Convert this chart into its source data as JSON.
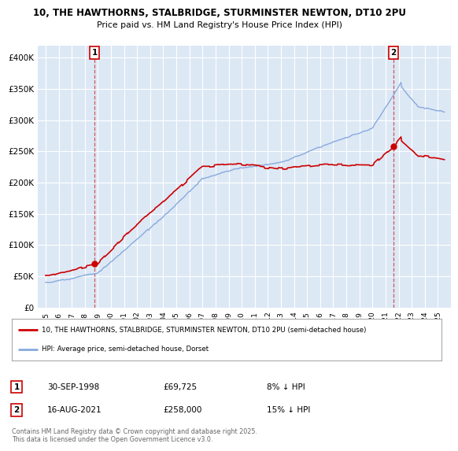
{
  "title1": "10, THE HAWTHORNS, STALBRIDGE, STURMINSTER NEWTON, DT10 2PU",
  "title2": "Price paid vs. HM Land Registry's House Price Index (HPI)",
  "ylabel_ticks": [
    "£0",
    "£50K",
    "£100K",
    "£150K",
    "£200K",
    "£250K",
    "£300K",
    "£350K",
    "£400K"
  ],
  "ytick_values": [
    0,
    50000,
    100000,
    150000,
    200000,
    250000,
    300000,
    350000,
    400000
  ],
  "ylim": [
    0,
    420000
  ],
  "sale1_year": 1998.75,
  "sale1_price": 69725,
  "sale1_date": "30-SEP-1998",
  "sale1_note": "8% ↓ HPI",
  "sale2_year": 2021.62,
  "sale2_price": 258000,
  "sale2_date": "16-AUG-2021",
  "sale2_note": "15% ↓ HPI",
  "legend_label1": "10, THE HAWTHORNS, STALBRIDGE, STURMINSTER NEWTON, DT10 2PU (semi-detached house)",
  "legend_label2": "HPI: Average price, semi-detached house, Dorset",
  "footer": "Contains HM Land Registry data © Crown copyright and database right 2025.\nThis data is licensed under the Open Government Licence v3.0.",
  "color_red": "#cc0000",
  "color_blue": "#88aadd",
  "bg_color": "#ffffff",
  "plot_bg": "#dde8f5",
  "grid_color": "#ffffff"
}
